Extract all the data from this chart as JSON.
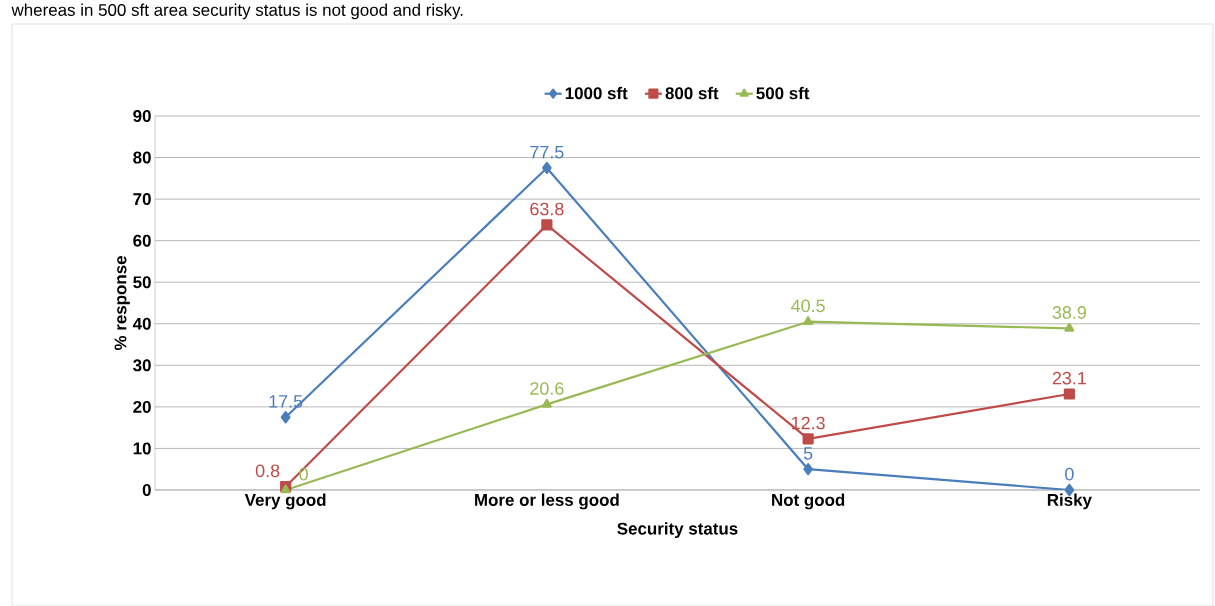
{
  "chart_data": {
    "type": "line",
    "xlabel": "Security status",
    "ylabel": "% response",
    "annotations": [
      "whereas in 500 sft area security status is not good and risky."
    ],
    "categories": [
      "Very good",
      "More or less good",
      "Not good",
      "Risky"
    ],
    "series": [
      {
        "name": "1000 sft",
        "color": "#4a7ebb",
        "marker": "diamond",
        "values": [
          17.5,
          77.5,
          5,
          0
        ]
      },
      {
        "name": "800 sft",
        "color": "#be4b48",
        "marker": "square",
        "values": [
          0.8,
          63.8,
          12.3,
          23.1
        ]
      },
      {
        "name": "500 sft",
        "color": "#98b954",
        "marker": "triangle",
        "values": [
          0,
          20.6,
          40.5,
          38.9
        ]
      }
    ],
    "ylim": [
      0,
      90
    ],
    "yticks": [
      0,
      10,
      20,
      30,
      40,
      50,
      60,
      70,
      80,
      90
    ],
    "grid": "y",
    "legend": "top",
    "data_labels": true
  }
}
